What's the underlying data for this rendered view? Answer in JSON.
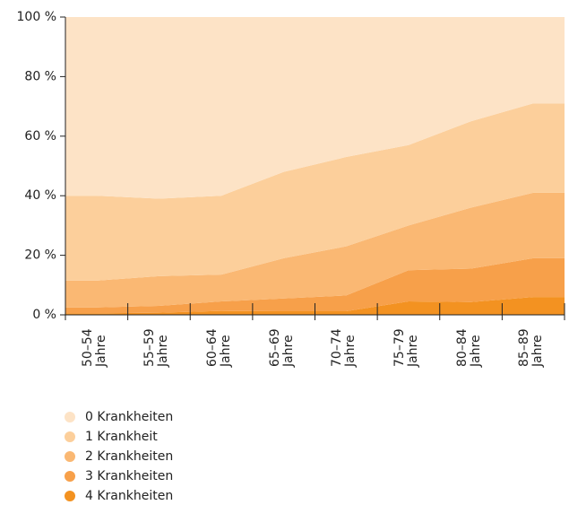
{
  "chart_data": {
    "type": "stacked_area",
    "categories": [
      "50–54 Jahre",
      "55–59 Jahre",
      "60–64 Jahre",
      "65–69 Jahre",
      "70–74 Jahre",
      "75–79 Jahre",
      "80–84 Jahre",
      "85–89 Jahre"
    ],
    "series": [
      {
        "name": "0 Krankheiten",
        "color": "#fde3c6",
        "values": [
          60,
          61,
          60,
          52,
          47,
          43,
          35,
          29
        ]
      },
      {
        "name": "1 Krankheit",
        "color": "#fccf9b",
        "values": [
          28.5,
          26,
          26.5,
          29,
          30,
          27,
          29,
          30
        ]
      },
      {
        "name": "2 Krankheiten",
        "color": "#fab873",
        "values": [
          9,
          10,
          9,
          13.5,
          16.5,
          15,
          20.5,
          22
        ]
      },
      {
        "name": "3 Krankheiten",
        "color": "#f7a04a",
        "values": [
          2,
          2.3,
          3.2,
          4.3,
          5.3,
          10.5,
          11.2,
          13
        ]
      },
      {
        "name": "4 Krankheiten",
        "color": "#f39221",
        "values": [
          0.5,
          0.7,
          1.3,
          1.2,
          1.2,
          4.5,
          4.3,
          6
        ]
      }
    ],
    "ylim": [
      0,
      100
    ],
    "yticks": [
      {
        "value": 0,
        "label": "0 %"
      },
      {
        "value": 20,
        "label": "20 %"
      },
      {
        "value": 40,
        "label": "40 %"
      },
      {
        "value": 60,
        "label": "60 %"
      },
      {
        "value": 80,
        "label": "80 %"
      },
      {
        "value": 100,
        "label": "100 %"
      }
    ]
  }
}
